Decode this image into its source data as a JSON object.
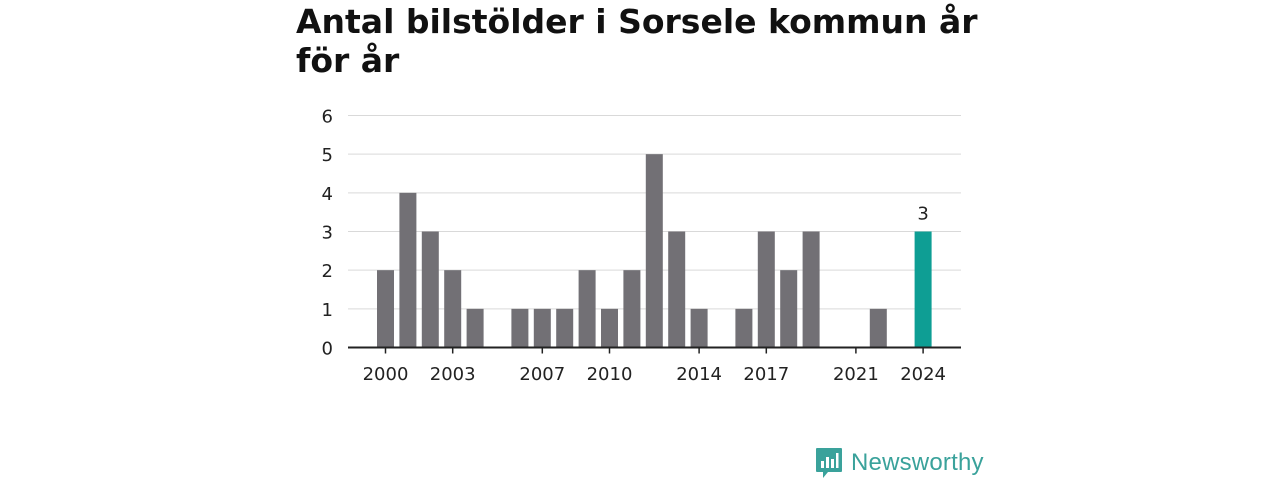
{
  "chart_data": {
    "type": "bar",
    "title": "Antal bilstölder i Sorsele kommun år för år",
    "xlabel": "",
    "ylabel": "",
    "ylim": [
      0,
      6
    ],
    "yticks": [
      0,
      1,
      2,
      3,
      4,
      5,
      6
    ],
    "grid": true,
    "legend": "none",
    "categories": [
      2000,
      2001,
      2002,
      2003,
      2004,
      2005,
      2006,
      2007,
      2008,
      2009,
      2010,
      2011,
      2012,
      2013,
      2014,
      2015,
      2016,
      2017,
      2018,
      2019,
      2020,
      2021,
      2022,
      2023,
      2024
    ],
    "values": [
      2,
      4,
      3,
      2,
      1,
      0,
      1,
      1,
      1,
      2,
      1,
      2,
      5,
      3,
      1,
      0,
      1,
      3,
      2,
      3,
      0,
      0,
      1,
      0,
      3
    ],
    "xtick_labels": [
      2000,
      2003,
      2007,
      2010,
      2014,
      2017,
      2021,
      2024
    ],
    "highlight": {
      "category": 2024,
      "label": "3"
    },
    "colors": {
      "bar": "#727075",
      "highlight": "#0e9e94",
      "grid": "#d9d9d9",
      "axis": "#222222"
    }
  },
  "brand": {
    "name": "Newsworthy",
    "icon": "newsworthy-logo-icon",
    "color": "#3aa29b"
  }
}
